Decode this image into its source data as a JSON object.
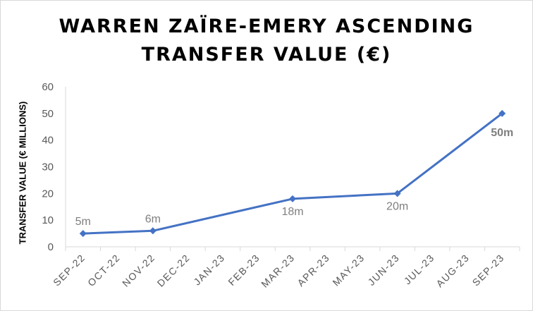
{
  "chart_data": {
    "type": "line",
    "title_lines": [
      "WARREN ZAÏRE-EMERY ASCENDING",
      "TRANSFER VALUE (€)"
    ],
    "xlabel": "",
    "ylabel": "TRANSFER VALUE (€ MILLIONS)",
    "categories": [
      "SEP-22",
      "OCT-22",
      "NOV-22",
      "DEC-22",
      "JAN-23",
      "FEB-23",
      "MAR-23",
      "APR-23",
      "MAY-23",
      "JUN-23",
      "JUL-23",
      "AUG-23",
      "SEP-23"
    ],
    "ylim": [
      0,
      60
    ],
    "yticks": [
      0,
      10,
      20,
      30,
      40,
      50,
      60
    ],
    "grid": false,
    "series": [
      {
        "points": [
          {
            "x": "SEP-22",
            "y": 5,
            "label": "5m"
          },
          {
            "x": "NOV-22",
            "y": 6,
            "label": "6m"
          },
          {
            "x": "MAR-23",
            "y": 18,
            "label": "18m"
          },
          {
            "x": "JUN-23",
            "y": 20,
            "label": "20m"
          },
          {
            "x": "SEP-23",
            "y": 50,
            "label": "50m"
          }
        ],
        "color": "#4472c4"
      }
    ]
  }
}
